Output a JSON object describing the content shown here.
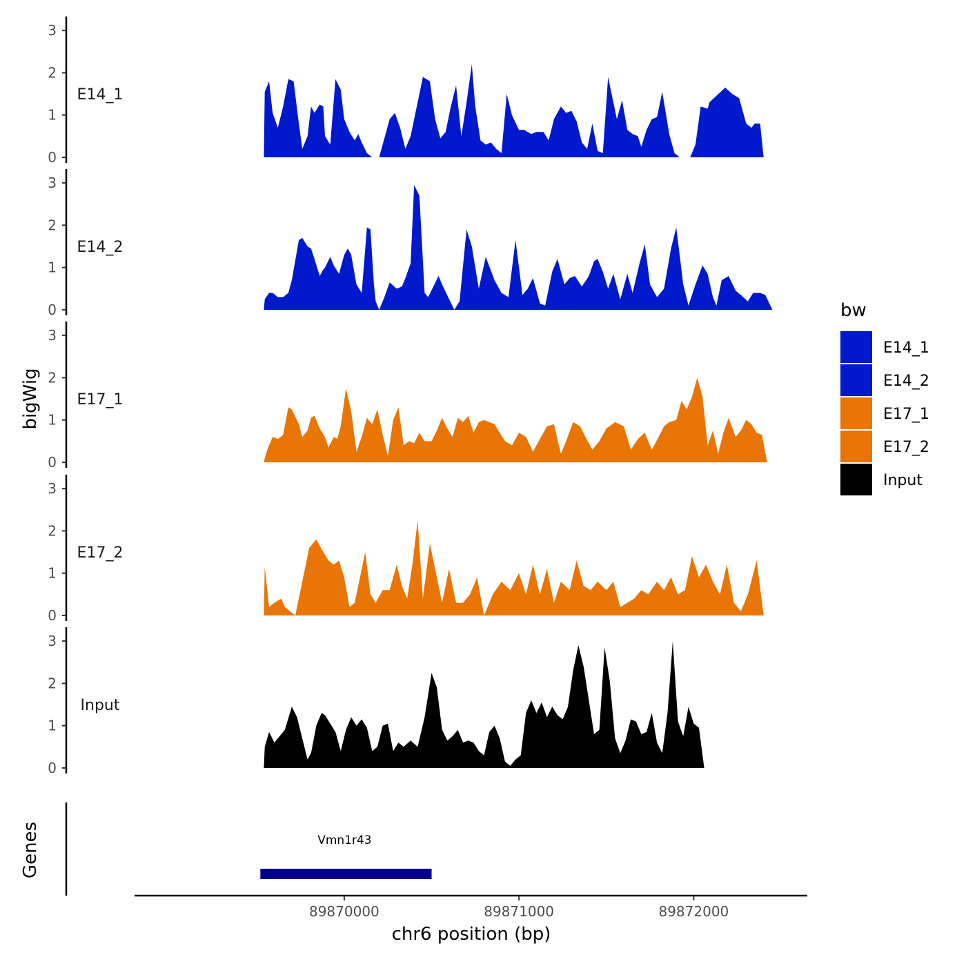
{
  "chart_data": {
    "type": "area",
    "y_axis_title": "bigWig",
    "x_axis_title": "chr6 position (bp)",
    "genes_track_title": "Genes",
    "legend": {
      "title": "bw",
      "entries": [
        {
          "name": "E14_1",
          "color": "#0019CC"
        },
        {
          "name": "E14_2",
          "color": "#0019CC"
        },
        {
          "name": "E17_1",
          "color": "#E87505"
        },
        {
          "name": "E17_2",
          "color": "#E87505"
        },
        {
          "name": "Input",
          "color": "#000000"
        }
      ]
    },
    "xlim": [
      89868800,
      89872650
    ],
    "x_ticks": [
      {
        "value": 89870000,
        "label": "89870000"
      },
      {
        "value": 89871000,
        "label": "89871000"
      },
      {
        "value": 89872000,
        "label": "89872000"
      }
    ],
    "ylim": [
      0,
      3.2
    ],
    "y_ticks": [
      {
        "value": 0,
        "label": "0"
      },
      {
        "value": 1,
        "label": "1"
      },
      {
        "value": 2,
        "label": "2"
      },
      {
        "value": 3,
        "label": "3"
      }
    ],
    "tracks": [
      {
        "name": "E14_1",
        "color": "#0019CC",
        "x": [
          89869540,
          89869545,
          89869570,
          89869590,
          89869620,
          89869650,
          89869680,
          89869710,
          89869740,
          89869760,
          89869790,
          89869810,
          89869830,
          89869860,
          89869880,
          89869890,
          89869920,
          89869950,
          89869980,
          89870000,
          89870030,
          89870060,
          89870080,
          89870100,
          89870130,
          89870160,
          89870190,
          89870200,
          89870260,
          89870290,
          89870320,
          89870350,
          89870380,
          89870400,
          89870450,
          89870490,
          89870520,
          89870550,
          89870580,
          89870610,
          89870640,
          89870670,
          89870700,
          89870730,
          89870750,
          89870780,
          89870810,
          89870840,
          89870870,
          89870900,
          89870930,
          89870960,
          89871000,
          89871030,
          89871070,
          89871100,
          89871140,
          89871170,
          89871200,
          89871240,
          89871270,
          89871300,
          89871330,
          89871360,
          89871390,
          89871420,
          89871450,
          89871480,
          89871510,
          89871560,
          89871590,
          89871620,
          89871650,
          89871680,
          89871700,
          89871730,
          89871760,
          89871790,
          89871820,
          89871860,
          89871890,
          89871920,
          89871950,
          89871980,
          89872010,
          89872040,
          89872080,
          89872090,
          89872180,
          89872220,
          89872260,
          89872300,
          89872330,
          89872350,
          89872380,
          89872400,
          89872430,
          89872460,
          89872490,
          89872510
        ],
        "y": [
          0,
          1.55,
          1.8,
          1.05,
          0.7,
          1.2,
          1.85,
          1.8,
          0.8,
          0.2,
          0.5,
          1.2,
          1.05,
          1.25,
          1.2,
          0.5,
          0.3,
          1.85,
          1.6,
          0.9,
          0.6,
          0.4,
          0.55,
          0.35,
          0.1,
          0,
          0,
          0,
          0.9,
          1.05,
          0.7,
          0.2,
          0.5,
          0.9,
          1.9,
          1.8,
          0.9,
          0.45,
          0.6,
          1.2,
          1.7,
          0.5,
          1.3,
          2.2,
          1.2,
          0.4,
          0.3,
          0.35,
          0.2,
          0.1,
          1.5,
          1.0,
          0.65,
          0.65,
          0.55,
          0.6,
          0.6,
          0.4,
          0.9,
          1.2,
          1.05,
          1.1,
          0.85,
          0.35,
          0.2,
          0.8,
          0.15,
          0.1,
          1.9,
          0.9,
          1.35,
          0.65,
          0.55,
          0.5,
          0.25,
          0.65,
          0.9,
          0.95,
          1.55,
          0.55,
          0.1,
          0,
          0,
          0,
          0.3,
          1.2,
          1.15,
          1.3,
          1.65,
          1.5,
          1.4,
          0.8,
          0.7,
          0.8,
          0.8,
          0,
          0,
          0,
          0,
          0
        ]
      },
      {
        "name": "E14_2",
        "color": "#0019CC",
        "x": [
          89869540,
          89869545,
          89869570,
          89869590,
          89869620,
          89869650,
          89869680,
          89869700,
          89869740,
          89869760,
          89869790,
          89869810,
          89869830,
          89869860,
          89869880,
          89869890,
          89869920,
          89869940,
          89869970,
          89870000,
          89870020,
          89870040,
          89870070,
          89870100,
          89870130,
          89870150,
          89870170,
          89870180,
          89870200,
          89870230,
          89870260,
          89870300,
          89870330,
          89870350,
          89870380,
          89870400,
          89870430,
          89870460,
          89870480,
          89870510,
          89870540,
          89870560,
          89870630,
          89870660,
          89870700,
          89870730,
          89870770,
          89870810,
          89870860,
          89870900,
          89870940,
          89870980,
          89871020,
          89871050,
          89871080,
          89871120,
          89871150,
          89871190,
          89871220,
          89871260,
          89871290,
          89871320,
          89871360,
          89871400,
          89871430,
          89871450,
          89871480,
          89871510,
          89871540,
          89871580,
          89871620,
          89871650,
          89871690,
          89871720,
          89871750,
          89871790,
          89871830,
          89871870,
          89871900,
          89871940,
          89871970,
          89872010,
          89872050,
          89872080,
          89872110,
          89872130,
          89872160,
          89872200,
          89872240,
          89872270,
          89872310,
          89872340,
          89872380,
          89872410,
          89872450,
          89872490,
          89872500
        ],
        "y": [
          0,
          0.25,
          0.4,
          0.4,
          0.3,
          0.3,
          0.4,
          0.7,
          1.65,
          1.7,
          1.5,
          1.45,
          1.2,
          0.8,
          0.95,
          1.0,
          1.25,
          1.05,
          0.85,
          1.3,
          1.45,
          1.3,
          0.6,
          0.4,
          1.95,
          1.9,
          0.6,
          0.2,
          0,
          0.3,
          0.65,
          0.5,
          0.55,
          0.75,
          1.1,
          2.95,
          2.7,
          0.4,
          0.3,
          0.55,
          0.8,
          0.6,
          0,
          0.2,
          1.9,
          1.5,
          0.5,
          1.25,
          0.7,
          0.4,
          0.3,
          1.65,
          0.35,
          0.5,
          0.75,
          0.15,
          0.1,
          0.9,
          1.2,
          0.6,
          0.75,
          0.8,
          0.55,
          0.8,
          1.15,
          1.2,
          0.9,
          0.5,
          0.85,
          0.25,
          0.85,
          0.4,
          1.1,
          1.55,
          0.6,
          0.3,
          0.5,
          1.45,
          1.95,
          0.6,
          0.1,
          0.6,
          1.05,
          0.85,
          0.3,
          0.1,
          0.7,
          0.8,
          0.45,
          0.35,
          0.2,
          0.4,
          0.4,
          0.35,
          0,
          0,
          0
        ]
      },
      {
        "name": "E17_1",
        "color": "#E87505",
        "x": [
          89869540,
          89869545,
          89869560,
          89869590,
          89869620,
          89869650,
          89869680,
          89869700,
          89869740,
          89869760,
          89869790,
          89869810,
          89869830,
          89869860,
          89869890,
          89869910,
          89869940,
          89869960,
          89869980,
          89870010,
          89870040,
          89870070,
          89870100,
          89870130,
          89870160,
          89870190,
          89870220,
          89870250,
          89870280,
          89870310,
          89870340,
          89870370,
          89870400,
          89870430,
          89870460,
          89870500,
          89870530,
          89870560,
          89870590,
          89870620,
          89870650,
          89870680,
          89870710,
          89870740,
          89870770,
          89870800,
          89870830,
          89870860,
          89870890,
          89870920,
          89870960,
          89871000,
          89871040,
          89871080,
          89871120,
          89871160,
          89871200,
          89871240,
          89871270,
          89871310,
          89871350,
          89871380,
          89871420,
          89871460,
          89871500,
          89871550,
          89871600,
          89871640,
          89871680,
          89871720,
          89871760,
          89871800,
          89871830,
          89871860,
          89871900,
          89871930,
          89871960,
          89871990,
          89872020,
          89872050,
          89872080,
          89872110,
          89872140,
          89872170,
          89872200,
          89872240,
          89872270,
          89872300,
          89872330,
          89872360,
          89872390,
          89872420,
          89872450,
          89872480,
          89872500
        ],
        "y": [
          0,
          0.1,
          0.3,
          0.6,
          0.55,
          0.65,
          1.3,
          1.25,
          0.9,
          0.6,
          0.75,
          1.05,
          1.1,
          0.8,
          0.6,
          0.35,
          0.6,
          0.55,
          0.85,
          1.75,
          1.2,
          0.25,
          0.6,
          1.05,
          0.9,
          1.25,
          0.65,
          0.15,
          1.0,
          1.3,
          0.4,
          0.5,
          0.45,
          0.7,
          0.5,
          0.5,
          0.75,
          1.05,
          0.8,
          0.6,
          1.05,
          0.95,
          1.1,
          0.7,
          0.95,
          1.0,
          0.95,
          0.9,
          0.7,
          0.5,
          0.4,
          0.7,
          0.6,
          0.25,
          0.55,
          0.85,
          0.9,
          0.2,
          0.5,
          0.95,
          0.85,
          0.6,
          0.3,
          0.5,
          0.8,
          0.95,
          0.85,
          0.3,
          0.55,
          0.7,
          0.3,
          0.6,
          0.85,
          0.95,
          1.0,
          1.45,
          1.25,
          1.55,
          2.0,
          1.55,
          0.4,
          0.75,
          0.2,
          0.7,
          1.05,
          0.6,
          0.75,
          1.0,
          0.9,
          0.7,
          0.65,
          0,
          0,
          0,
          0
        ]
      },
      {
        "name": "E17_2",
        "color": "#E87505",
        "x": [
          89869540,
          89869545,
          89869570,
          89869600,
          89869640,
          89869660,
          89869720,
          89869760,
          89869800,
          89869840,
          89869880,
          89869910,
          89869940,
          89869970,
          89870000,
          89870030,
          89870060,
          89870090,
          89870120,
          89870150,
          89870180,
          89870220,
          89870260,
          89870300,
          89870330,
          89870360,
          89870390,
          89870420,
          89870450,
          89870490,
          89870530,
          89870560,
          89870600,
          89870640,
          89870680,
          89870720,
          89870760,
          89870800,
          89870850,
          89870900,
          89870950,
          89871000,
          89871040,
          89871080,
          89871120,
          89871160,
          89871200,
          89871240,
          89871290,
          89871330,
          89871370,
          89871410,
          89871450,
          89871500,
          89871540,
          89871580,
          89871620,
          89871660,
          89871700,
          89871740,
          89871790,
          89871830,
          89871870,
          89871910,
          89871950,
          89871990,
          89872030,
          89872070,
          89872110,
          89872150,
          89872190,
          89872230,
          89872270,
          89872310,
          89872360,
          89872400,
          89872450,
          89872490,
          89872500
        ],
        "y": [
          0,
          1.15,
          0.2,
          0.3,
          0.4,
          0.2,
          0,
          0.8,
          1.6,
          1.8,
          1.5,
          1.3,
          1.2,
          1.3,
          0.9,
          0.2,
          0.3,
          0.9,
          1.5,
          0.5,
          0.3,
          0.6,
          0.6,
          1.2,
          0.7,
          0.4,
          1.2,
          2.25,
          0.4,
          1.7,
          0.9,
          0.3,
          1.1,
          0.3,
          0.3,
          0.5,
          0.9,
          0,
          0.5,
          0.8,
          0.6,
          1.0,
          0.5,
          1.2,
          0.5,
          1.1,
          0.3,
          0.8,
          0.6,
          1.3,
          0.7,
          0.6,
          0.8,
          0.6,
          0.8,
          0.2,
          0.3,
          0.4,
          0.6,
          0.5,
          0.8,
          0.6,
          0.9,
          0.5,
          0.6,
          1.4,
          0.9,
          1.2,
          0.8,
          0.5,
          1.2,
          0.3,
          0.1,
          0.5,
          1.3,
          0,
          0,
          0,
          0
        ]
      },
      {
        "name": "Input",
        "color": "#000000",
        "x": [
          89869540,
          89869545,
          89869570,
          89869600,
          89869630,
          89869660,
          89869700,
          89869730,
          89869760,
          89869790,
          89869810,
          89869840,
          89869870,
          89869890,
          89869920,
          89869950,
          89869980,
          89870010,
          89870040,
          89870070,
          89870100,
          89870130,
          89870160,
          89870190,
          89870220,
          89870250,
          89870280,
          89870310,
          89870340,
          89870380,
          89870420,
          89870460,
          89870500,
          89870530,
          89870560,
          89870590,
          89870620,
          89870650,
          89870680,
          89870710,
          89870740,
          89870770,
          89870800,
          89870830,
          89870860,
          89870890,
          89870920,
          89870950,
          89870980,
          89871010,
          89871040,
          89871070,
          89871100,
          89871130,
          89871160,
          89871190,
          89871220,
          89871250,
          89871280,
          89871310,
          89871340,
          89871370,
          89871400,
          89871430,
          89871460,
          89871490,
          89871520,
          89871550,
          89871580,
          89871610,
          89871640,
          89871670,
          89871700,
          89871730,
          89871760,
          89871790,
          89871820,
          89871850,
          89871880,
          89871910,
          89871940,
          89871970,
          89872000,
          89872030,
          89872060,
          89872090,
          89872120,
          89872150,
          89872180,
          89872210,
          89872240,
          89872270,
          89872300,
          89872330,
          89872360,
          89872390,
          89872420,
          89872450,
          89872480,
          89872500
        ],
        "y": [
          0,
          0.5,
          0.85,
          0.6,
          0.75,
          0.9,
          1.45,
          1.2,
          0.7,
          0.2,
          0.35,
          1.0,
          1.3,
          1.25,
          1.05,
          0.85,
          0.4,
          0.9,
          1.2,
          1.0,
          1.15,
          0.95,
          0.4,
          0.5,
          1.0,
          1.05,
          0.4,
          0.6,
          0.5,
          0.65,
          0.5,
          1.2,
          2.25,
          1.9,
          0.9,
          0.65,
          0.75,
          0.9,
          0.6,
          0.65,
          0.6,
          0.4,
          0.3,
          0.85,
          1.0,
          0.7,
          0.15,
          0.05,
          0.2,
          0.3,
          1.3,
          1.6,
          1.3,
          1.55,
          1.2,
          1.45,
          1.25,
          1.15,
          1.45,
          2.3,
          2.9,
          2.4,
          1.6,
          0.8,
          0.9,
          2.85,
          2.05,
          0.7,
          0.35,
          0.65,
          1.15,
          1.1,
          0.8,
          0.85,
          1.3,
          0.6,
          0.35,
          1.3,
          3.0,
          1.1,
          0.75,
          1.45,
          1.05,
          0.95,
          0,
          0,
          0,
          0,
          0,
          0,
          0,
          0,
          0,
          0,
          0,
          0,
          0,
          0,
          0,
          0
        ]
      }
    ],
    "genes": [
      {
        "name": "Vmn1r43",
        "start": 89869520,
        "end": 89870500,
        "color": "#00008B"
      }
    ]
  }
}
